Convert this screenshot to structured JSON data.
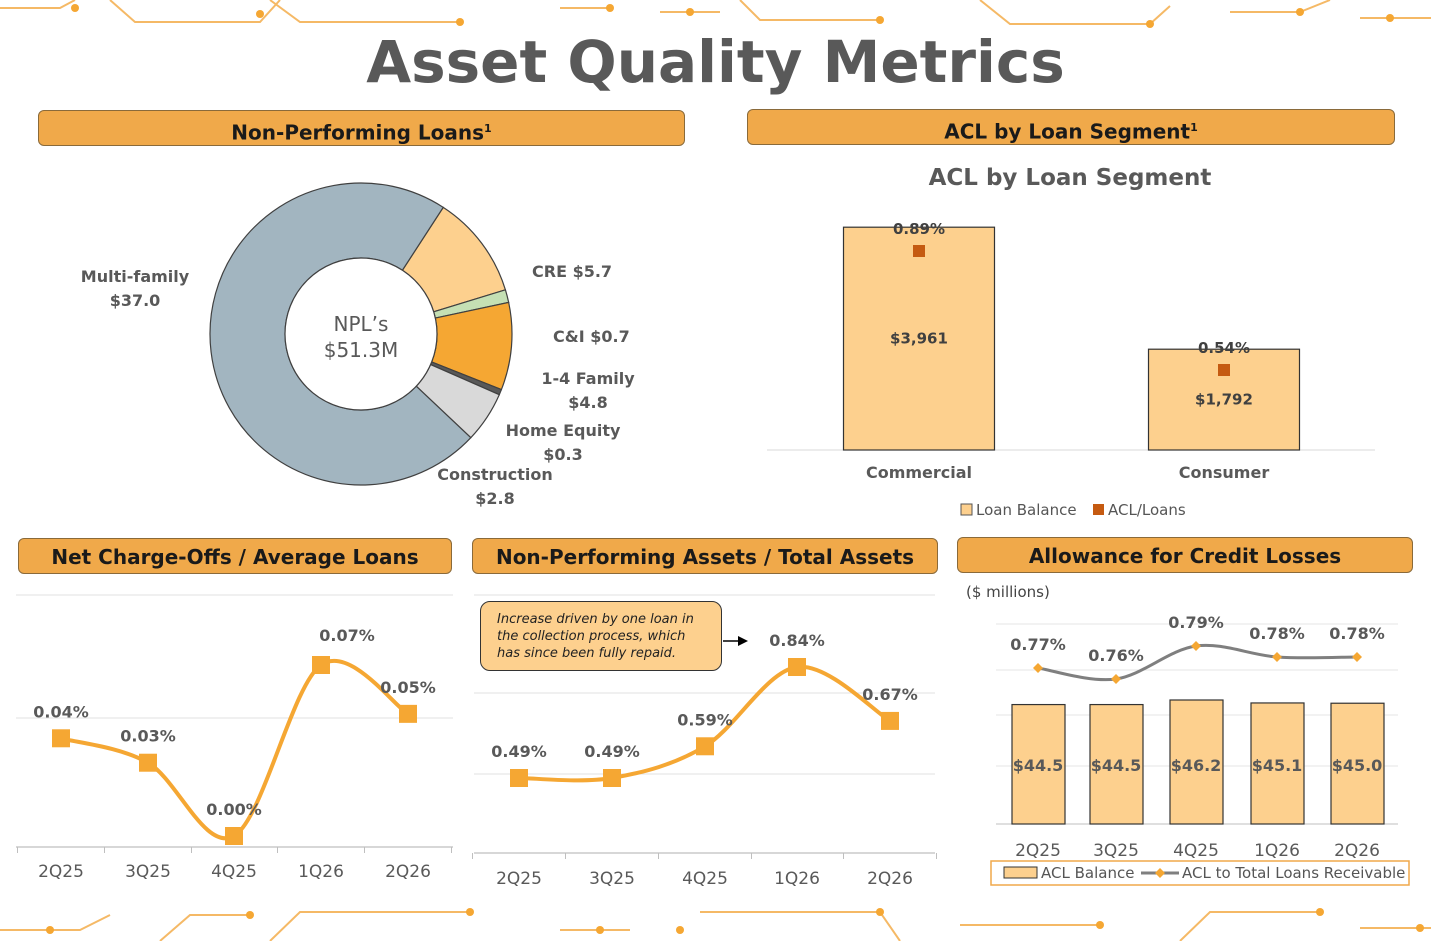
{
  "title": "Asset Quality Metrics",
  "colors": {
    "accent": "#f0a94a",
    "line": "#f5a733",
    "bar": "#fdd08e",
    "marker": "#c55a11",
    "gray_line": "#7f7f7f",
    "slate": "#a2b5c0"
  },
  "panels": {
    "npl": {
      "header": "Non-Performing Loans",
      "sup": "1"
    },
    "acl_segment": {
      "header": "ACL by Loan Segment",
      "sup": "1"
    },
    "nco": {
      "header": "Net Charge-Offs / Average Loans"
    },
    "npa": {
      "header": "Non-Performing Assets / Total Assets"
    },
    "allowance": {
      "header": "Allowance for Credit Losses",
      "unit_note": "($ millions)"
    }
  },
  "chart_data": [
    {
      "id": "npl_donut",
      "type": "pie",
      "center_line1": "NPL’s",
      "center_line2": "$51.3M",
      "slices": [
        {
          "label": "CRE",
          "value_text": "$5.7",
          "value": 5.7,
          "color": "#fdd08e"
        },
        {
          "label": "C&I",
          "value_text": "$0.7",
          "value": 0.7,
          "color": "#c5e0b4"
        },
        {
          "label": "1-4 Family",
          "value_text": "$4.8",
          "value": 4.8,
          "color": "#f5a733"
        },
        {
          "label": "Home Equity",
          "value_text": "$0.3",
          "value": 0.3,
          "color": "#595959"
        },
        {
          "label": "Construction",
          "value_text": "$2.8",
          "value": 2.8,
          "color": "#d9d9d9"
        },
        {
          "label": "Multi-family",
          "value_text": "$37.0",
          "value": 37.0,
          "color": "#a2b5c0"
        }
      ]
    },
    {
      "id": "acl_segment",
      "type": "bar",
      "title": "ACL by Loan Segment",
      "categories": [
        "Commercial",
        "Consumer"
      ],
      "series": [
        {
          "name": "Loan Balance",
          "values": [
            3961,
            1792
          ],
          "labels": [
            "$3,961",
            "$1,792"
          ]
        },
        {
          "name": "ACL/Loans",
          "values": [
            0.89,
            0.54
          ],
          "labels": [
            "0.89%",
            "0.54%"
          ]
        }
      ]
    },
    {
      "id": "nco",
      "type": "line",
      "categories": [
        "2Q25",
        "3Q25",
        "4Q25",
        "1Q26",
        "2Q26"
      ],
      "values": [
        0.04,
        0.03,
        0.0,
        0.07,
        0.05
      ],
      "labels": [
        "0.04%",
        "0.03%",
        "0.00%",
        "0.07%",
        "0.05%"
      ],
      "ylim": [
        0,
        0.08
      ]
    },
    {
      "id": "npa",
      "type": "line",
      "categories": [
        "2Q25",
        "3Q25",
        "4Q25",
        "1Q26",
        "2Q26"
      ],
      "values": [
        0.49,
        0.49,
        0.59,
        0.84,
        0.67
      ],
      "labels": [
        "0.49%",
        "0.49%",
        "0.59%",
        "0.84%",
        "0.67%"
      ],
      "annotation": "Increase driven by one loan in the collection process, which has since been fully repaid."
    },
    {
      "id": "allowance",
      "type": "bar",
      "categories": [
        "2Q25",
        "3Q25",
        "4Q25",
        "1Q26",
        "2Q26"
      ],
      "series": [
        {
          "name": "ACL Balance",
          "values": [
            44.5,
            44.5,
            46.2,
            45.1,
            45.0
          ],
          "labels": [
            "$44.5",
            "$44.5",
            "$46.2",
            "$45.1",
            "$45.0"
          ]
        },
        {
          "name": "ACL to Total Loans Receivable",
          "values": [
            0.77,
            0.76,
            0.79,
            0.78,
            0.78
          ],
          "labels": [
            "0.77%",
            "0.76%",
            "0.79%",
            "0.78%",
            "0.78%"
          ]
        }
      ]
    }
  ]
}
